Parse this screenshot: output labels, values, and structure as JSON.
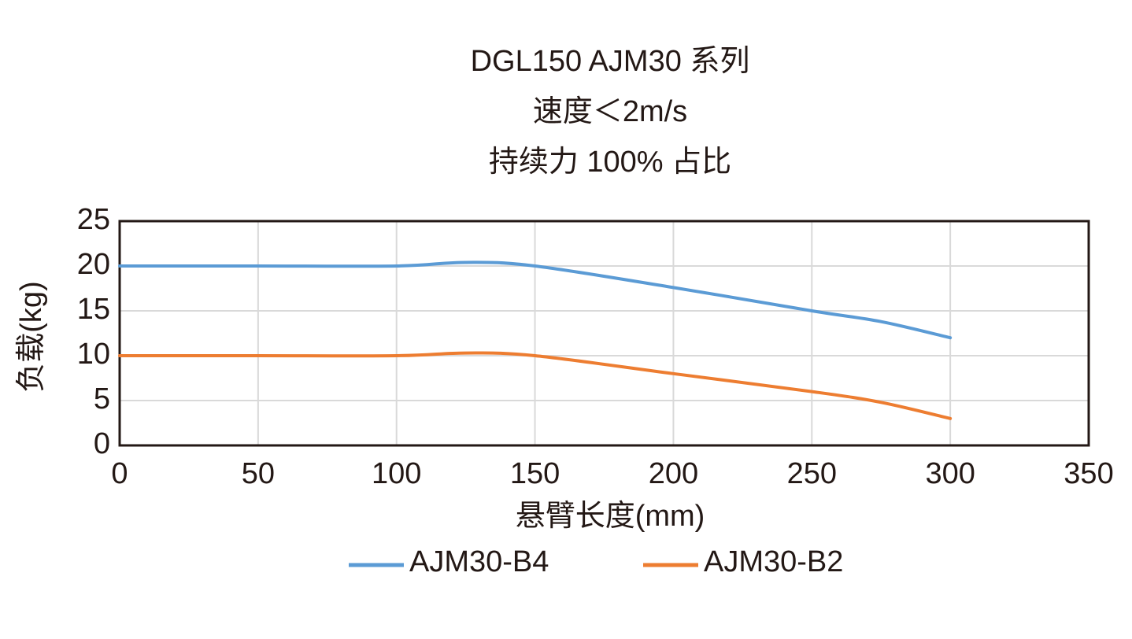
{
  "chart_data": {
    "type": "line",
    "title": [
      "DGL150 AJM30 系列",
      "速度＜2m/s",
      "持续力 100% 占比"
    ],
    "x_label": "悬臂长度(mm)",
    "y_label": "负载(kg)",
    "x": [
      0,
      50,
      100,
      125,
      150,
      200,
      250,
      275,
      300
    ],
    "series": [
      {
        "name": "AJM30-B4",
        "color": "#5b9bd5",
        "values": [
          20,
          20,
          20,
          20.4,
          20,
          17.6,
          15,
          13.8,
          12
        ]
      },
      {
        "name": "AJM30-B2",
        "color": "#ed7d31",
        "values": [
          10,
          10,
          10,
          10.3,
          10,
          8,
          6,
          4.8,
          3
        ]
      }
    ],
    "xlim": [
      0,
      350
    ],
    "xticks": [
      0,
      50,
      100,
      150,
      200,
      250,
      300,
      350
    ],
    "ylim": [
      0,
      25
    ],
    "yticks": [
      0,
      5,
      10,
      15,
      20,
      25
    ],
    "grid": true,
    "legend": "bottom"
  }
}
